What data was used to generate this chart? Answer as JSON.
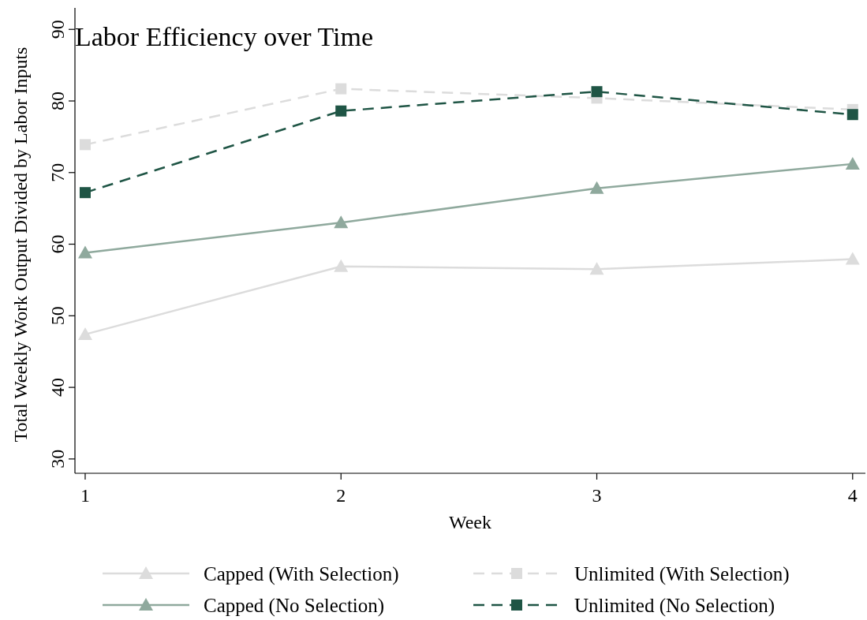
{
  "chart_data": {
    "type": "line",
    "title": "Labor Efficiency over Time",
    "xlabel": "Week",
    "ylabel": "Total Weekly Work Output Divided by Labor Inputs",
    "x": [
      1,
      2,
      3,
      4
    ],
    "xlim": [
      0.96,
      4.05
    ],
    "xticks": [
      1,
      2,
      3,
      4
    ],
    "ylim": [
      28,
      93
    ],
    "yticks": [
      30,
      40,
      50,
      60,
      70,
      80,
      90
    ],
    "grid": false,
    "legend": "bottom",
    "series": [
      {
        "name": "Capped (With Selection)",
        "color": "#dcdcdc",
        "marker": "triangle",
        "line_style": "solid",
        "values": [
          47.4,
          56.9,
          56.5,
          57.9
        ]
      },
      {
        "name": "Unlimited (With Selection)",
        "color": "#dcdcdc",
        "marker": "square",
        "line_style": "dashed",
        "values": [
          73.9,
          81.7,
          80.4,
          78.8
        ]
      },
      {
        "name": "Capped (No Selection)",
        "color": "#8fa99d",
        "marker": "triangle",
        "line_style": "solid",
        "values": [
          58.8,
          63.0,
          67.8,
          71.2
        ]
      },
      {
        "name": "Unlimited (No Selection)",
        "color": "#1f5545",
        "marker": "square",
        "line_style": "dashed",
        "values": [
          67.2,
          78.6,
          81.3,
          78.1
        ]
      }
    ]
  }
}
